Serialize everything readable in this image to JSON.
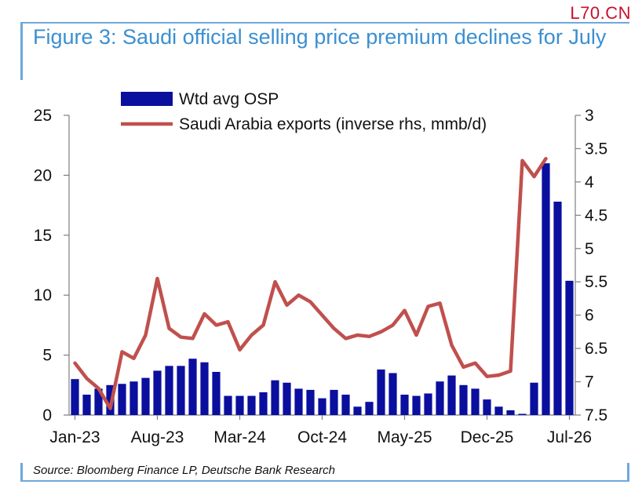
{
  "header": {
    "watermark": "L70.CN",
    "title": "Figure 3: Saudi official selling price premium declines for July"
  },
  "footer": {
    "source": "Source: Bloomberg Finance LP, Deutsche Bank Research"
  },
  "colors": {
    "bar": "#0a0f9e",
    "line": "#c0504d",
    "accent": "#6fa8dc",
    "title": "#3b8fd1"
  },
  "chart_data": {
    "type": "bar",
    "x_tick_labels": [
      "Jan-23",
      "Aug-23",
      "Mar-24",
      "Oct-24",
      "May-25",
      "Dec-25",
      "Jul-26"
    ],
    "y_left": {
      "min": 0,
      "max": 25,
      "ticks": [
        0,
        5,
        10,
        15,
        20,
        25
      ]
    },
    "y_right": {
      "min": 3,
      "max": 7.5,
      "inverted": true,
      "ticks": [
        3,
        3.5,
        4,
        4.5,
        5,
        5.5,
        6,
        6.5,
        7,
        7.5
      ]
    },
    "legend": {
      "position": "top-left"
    },
    "series": [
      {
        "name": "Wtd avg OSP",
        "type": "bar",
        "axis": "left",
        "values": [
          3.0,
          1.7,
          2.2,
          2.5,
          2.6,
          2.8,
          3.1,
          3.7,
          4.1,
          4.1,
          4.7,
          4.4,
          3.6,
          1.6,
          1.6,
          1.6,
          1.9,
          2.9,
          2.7,
          2.2,
          2.1,
          1.4,
          2.1,
          1.7,
          0.7,
          1.1,
          3.8,
          3.5,
          1.7,
          1.6,
          1.8,
          2.8,
          3.3,
          2.5,
          2.2,
          1.3,
          0.7,
          0.4,
          0.1,
          2.7,
          21.0,
          17.8,
          11.2
        ]
      },
      {
        "name": "Saudi Arabia exports (inverse rhs, mmb/d)",
        "type": "line",
        "axis": "right",
        "values": [
          6.72,
          6.95,
          7.1,
          7.4,
          6.55,
          6.65,
          6.3,
          5.45,
          6.2,
          6.33,
          6.35,
          5.98,
          6.15,
          6.1,
          6.52,
          6.3,
          6.15,
          5.5,
          5.85,
          5.7,
          5.8,
          6.0,
          6.2,
          6.35,
          6.3,
          6.32,
          6.25,
          6.15,
          5.93,
          6.3,
          5.87,
          5.82,
          6.45,
          6.78,
          6.72,
          6.92,
          6.9,
          6.84,
          3.68,
          3.92,
          3.65
        ]
      }
    ]
  }
}
